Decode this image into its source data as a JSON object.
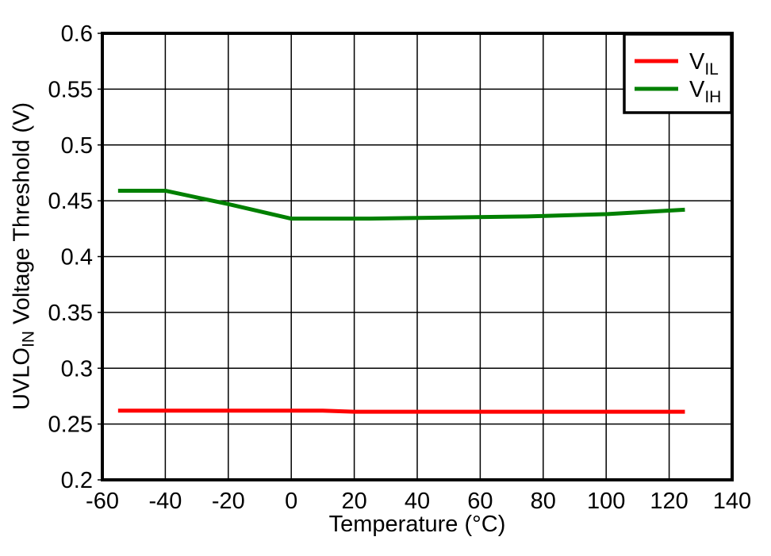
{
  "chart_data": {
    "type": "line",
    "title": "",
    "xlabel": "Temperature (°C)",
    "ylabel_parts": [
      {
        "text": "UVLO",
        "sub": false
      },
      {
        "text": "IN",
        "sub": true
      },
      {
        "text": " Voltage Threshold (V)",
        "sub": false
      }
    ],
    "xlim": [
      -60,
      140
    ],
    "ylim": [
      0.2,
      0.6
    ],
    "grid": "on",
    "legend_position": "top-right",
    "x_ticks": [
      {
        "v": -60,
        "label": "-60"
      },
      {
        "v": -40,
        "label": "-40"
      },
      {
        "v": -20,
        "label": "-20"
      },
      {
        "v": 0,
        "label": "0"
      },
      {
        "v": 20,
        "label": "20"
      },
      {
        "v": 40,
        "label": "40"
      },
      {
        "v": 60,
        "label": "60"
      },
      {
        "v": 80,
        "label": "80"
      },
      {
        "v": 100,
        "label": "100"
      },
      {
        "v": 120,
        "label": "120"
      },
      {
        "v": 140,
        "label": "140"
      }
    ],
    "y_ticks": [
      {
        "v": 0.2,
        "label": "0.2"
      },
      {
        "v": 0.25,
        "label": "0.25"
      },
      {
        "v": 0.3,
        "label": "0.3"
      },
      {
        "v": 0.35,
        "label": "0.35"
      },
      {
        "v": 0.4,
        "label": "0.4"
      },
      {
        "v": 0.45,
        "label": "0.45"
      },
      {
        "v": 0.5,
        "label": "0.5"
      },
      {
        "v": 0.55,
        "label": "0.55"
      },
      {
        "v": 0.6,
        "label": "0.6"
      }
    ],
    "series": [
      {
        "name": "VIL",
        "label_main": "V",
        "label_sub": "IL",
        "color": "#ff0000",
        "points": [
          [
            -55,
            0.262
          ],
          [
            10,
            0.262
          ],
          [
            20,
            0.261
          ],
          [
            125,
            0.261
          ]
        ]
      },
      {
        "name": "VIH",
        "label_main": "V",
        "label_sub": "IH",
        "color": "#008000",
        "points": [
          [
            -55,
            0.459
          ],
          [
            -40,
            0.459
          ],
          [
            -20,
            0.447
          ],
          [
            0,
            0.434
          ],
          [
            25,
            0.434
          ],
          [
            50,
            0.435
          ],
          [
            75,
            0.436
          ],
          [
            100,
            0.438
          ],
          [
            125,
            0.442
          ]
        ]
      }
    ]
  },
  "colors": {
    "background": "#ffffff",
    "axis": "#000000",
    "grid": "#000000",
    "text": "#000000",
    "legend_border": "#000000",
    "legend_fill": "#ffffff"
  }
}
